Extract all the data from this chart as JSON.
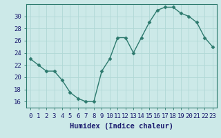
{
  "x": [
    0,
    1,
    2,
    3,
    4,
    5,
    6,
    7,
    8,
    9,
    10,
    11,
    12,
    13,
    14,
    15,
    16,
    17,
    18,
    19,
    20,
    21,
    22,
    23
  ],
  "y": [
    23,
    22,
    21,
    21,
    19.5,
    17.5,
    16.5,
    16,
    16,
    21,
    23,
    26.5,
    26.5,
    24,
    26.5,
    29,
    31,
    31.5,
    31.5,
    30.5,
    30,
    29,
    26.5,
    25
  ],
  "line_color": "#2d7a6e",
  "marker": "D",
  "marker_size": 2.5,
  "bg_color": "#cce9e8",
  "grid_color": "#b0d8d6",
  "xlabel": "Humidex (Indice chaleur)",
  "ylim": [
    15,
    32
  ],
  "xlim": [
    -0.5,
    23.5
  ],
  "yticks": [
    16,
    18,
    20,
    22,
    24,
    26,
    28,
    30
  ],
  "xtick_labels": [
    "0",
    "1",
    "2",
    "3",
    "4",
    "5",
    "6",
    "7",
    "8",
    "9",
    "10",
    "11",
    "12",
    "13",
    "14",
    "15",
    "16",
    "17",
    "18",
    "19",
    "20",
    "21",
    "22",
    "23"
  ],
  "xlabel_fontsize": 7.5,
  "tick_fontsize": 6.5,
  "spine_color": "#2d7a6e",
  "xlabel_color": "#1a1a6e",
  "tick_color": "#1a1a6e"
}
